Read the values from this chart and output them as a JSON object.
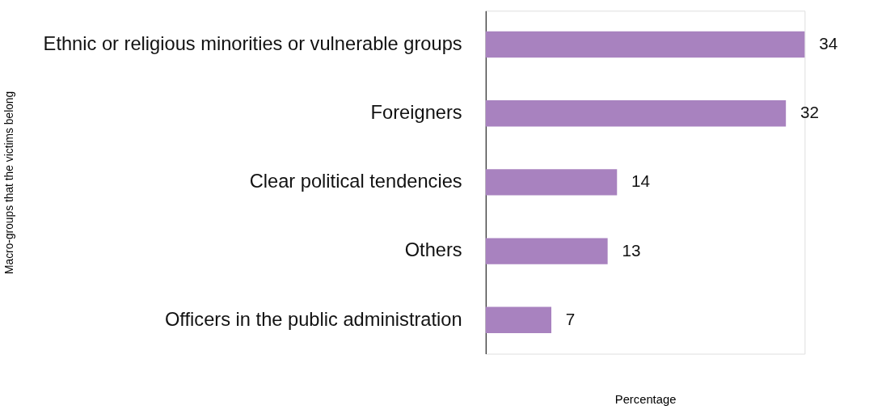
{
  "chart_data": {
    "type": "bar",
    "orientation": "horizontal",
    "ylabel": "Macro-groups that the victims belong",
    "xlabel": "Percentage",
    "categories": [
      "Ethnic or religious minorities or vulnerable groups",
      "Foreigners",
      "Clear political tendencies",
      "Others",
      "Officers in the public administration"
    ],
    "values": [
      34,
      32,
      14,
      13,
      7
    ],
    "color": "#a882bf",
    "data_labels": true,
    "tick_labels": "y",
    "grid": false
  }
}
